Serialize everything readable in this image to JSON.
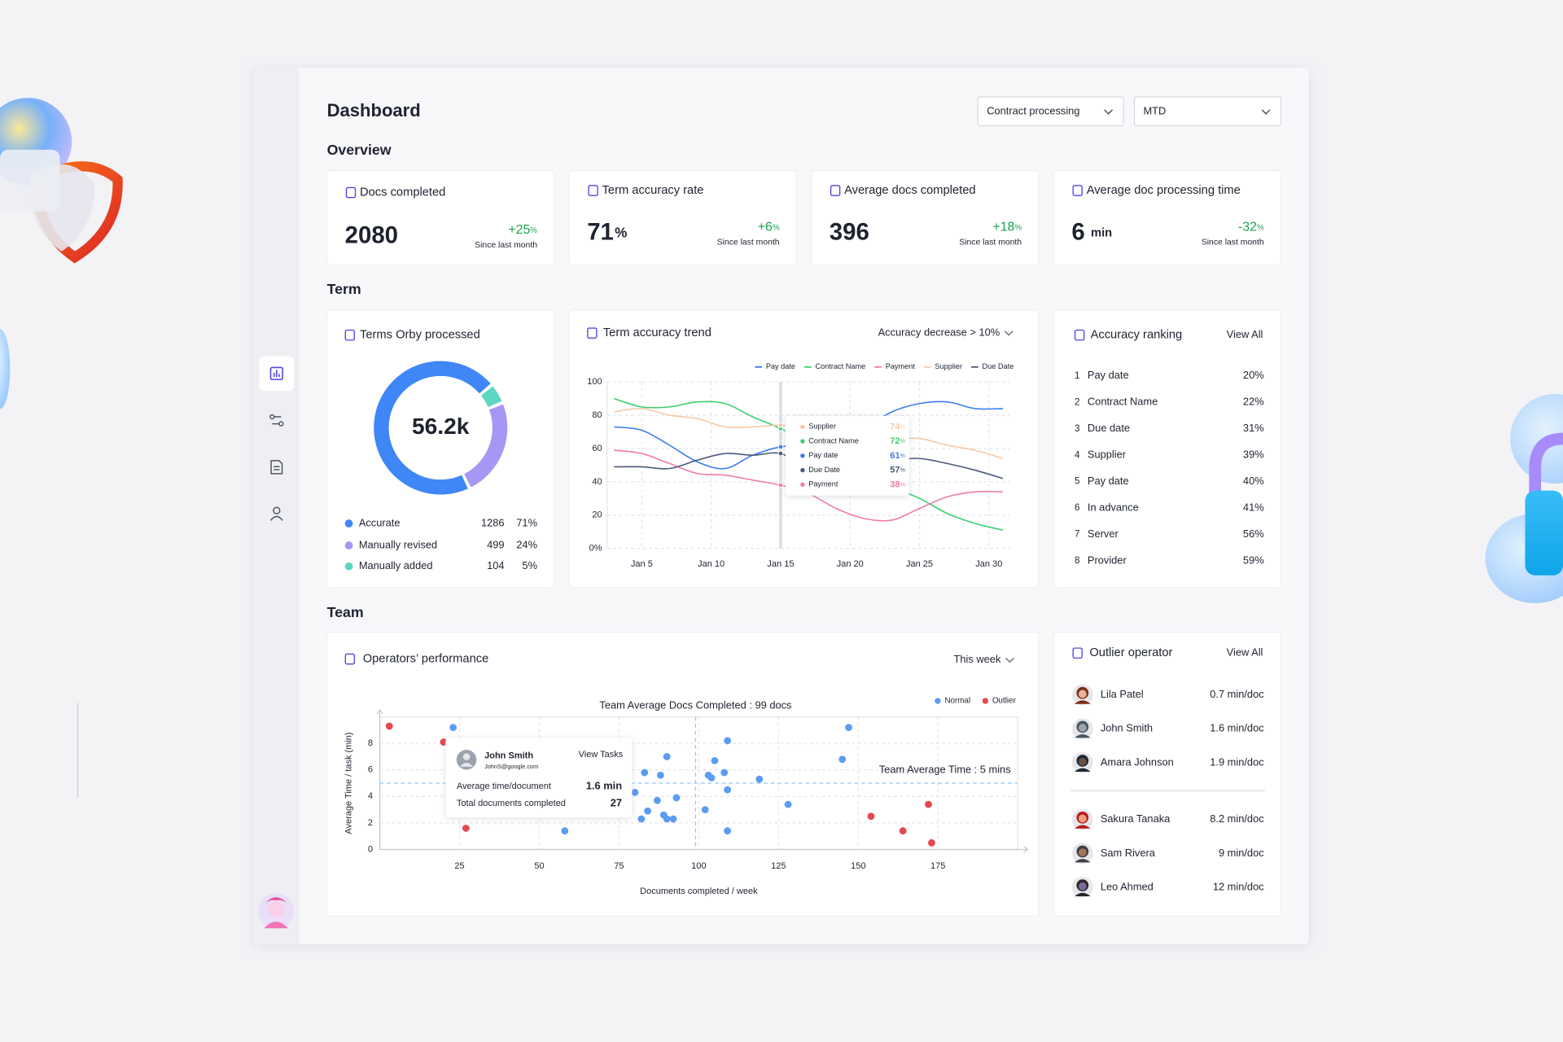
{
  "header": {
    "title": "Dashboard",
    "filters": [
      "Contract processing",
      "MTD"
    ]
  },
  "sections": [
    "Overview",
    "Term",
    "Team"
  ],
  "kpis": [
    {
      "title": "Docs completed",
      "value": "2080",
      "change": "+25",
      "change_unit": "%",
      "note": "Since last month"
    },
    {
      "title": "Term accuracy rate",
      "value": "71",
      "unit": "%",
      "change": "+6",
      "change_unit": "%",
      "note": "Since last month"
    },
    {
      "title": "Average docs completed",
      "value": "396",
      "change": "+18",
      "change_unit": "%",
      "note": "Since last month"
    },
    {
      "title": "Average doc processing time",
      "value": "6",
      "unit": "min",
      "change": "-32",
      "change_unit": "%",
      "note": "Since last month"
    }
  ],
  "chart_data": [
    {
      "type": "pie",
      "title": "Terms Orby processed",
      "total_label": "56.2k",
      "categories": [
        "Accurate",
        "Manually revised",
        "Manually added"
      ],
      "counts": [
        1286,
        499,
        104
      ],
      "values": [
        71,
        24,
        5
      ],
      "value_labels": [
        "71%",
        "24%",
        "5%"
      ],
      "colors": [
        "#3f86f7",
        "#a896f5",
        "#5fd6c4"
      ]
    },
    {
      "type": "line",
      "title": "Term accuracy trend",
      "filter": "Accuracy decrease > 10%",
      "x": [
        3,
        5,
        7,
        9,
        11,
        13,
        15,
        17,
        19,
        21,
        23,
        25,
        27,
        29,
        31
      ],
      "xlim": [
        2.5,
        31.5
      ],
      "xticks": [
        {
          "value": 5,
          "label": "Jan 5"
        },
        {
          "value": 10,
          "label": "Jan 10"
        },
        {
          "value": 15,
          "label": "Jan 15"
        },
        {
          "value": 20,
          "label": "Jan 20"
        },
        {
          "value": 25,
          "label": "Jan 25"
        },
        {
          "value": 30,
          "label": "Jan 30"
        }
      ],
      "ylim": [
        0,
        100
      ],
      "yticks": [
        {
          "value": 0,
          "label": "0%"
        },
        20,
        40,
        60,
        80,
        100
      ],
      "grid": true,
      "legend": "top-right",
      "series": [
        {
          "name": "Pay date",
          "color": "#3b7cf0",
          "values": [
            73,
            71,
            62,
            52,
            48,
            56,
            61,
            62,
            64,
            72,
            82,
            87,
            88,
            84,
            84
          ]
        },
        {
          "name": "Contract Name",
          "color": "#3ccf6e",
          "values": [
            90,
            85,
            85,
            88,
            87,
            79,
            72,
            63,
            53,
            45,
            37,
            30,
            21,
            15,
            11
          ]
        },
        {
          "name": "Payment",
          "color": "#f07aa8",
          "values": [
            59,
            57,
            51,
            45,
            44,
            41,
            38,
            33,
            24,
            18,
            17,
            24,
            31,
            34,
            34
          ]
        },
        {
          "name": "Supplier",
          "color": "#f6c9a6",
          "values": [
            82,
            84,
            80,
            78,
            73,
            73,
            74,
            72,
            70,
            68,
            66,
            66,
            62,
            59,
            54
          ]
        },
        {
          "name": "Due Date",
          "color": "#4b5a78",
          "values": [
            49,
            49,
            48,
            53,
            57,
            56,
            57,
            48,
            48,
            51,
            53,
            54,
            51,
            47,
            42
          ]
        }
      ],
      "tooltip": {
        "x": 15,
        "unit": "%",
        "items": [
          {
            "name": "Supplier",
            "value": 74
          },
          {
            "name": "Contract Name",
            "value": 72
          },
          {
            "name": "Pay date",
            "value": 61
          },
          {
            "name": "Due Date",
            "value": 57
          },
          {
            "name": "Payment",
            "value": 38
          }
        ]
      }
    },
    {
      "type": "scatter",
      "title": "Operators’ performance",
      "filter": "This week",
      "xlabel": "Documents completed / week",
      "ylabel": "Average Time / task (min)",
      "xlim": [
        0,
        200
      ],
      "xticks": [
        25,
        50,
        75,
        100,
        125,
        150,
        175
      ],
      "ylim": [
        0,
        10
      ],
      "yticks": [
        0,
        2,
        4,
        6,
        8
      ],
      "grid": true,
      "legend": "top-right",
      "reference_lines": {
        "x": 99,
        "y": 5
      },
      "annotations": [
        "Team Average Docs Completed : 99 docs",
        "Team Average Time : 5 mins"
      ],
      "series": [
        {
          "name": "Normal",
          "color": "#5b9cf2",
          "x": [
            23,
            58,
            83,
            90,
            88,
            80,
            84,
            82,
            87,
            89,
            90,
            92,
            93,
            102,
            103,
            104,
            105,
            108,
            109,
            109,
            109,
            119,
            128,
            145,
            147
          ],
          "values": [
            9.2,
            1.4,
            5.8,
            7,
            5.6,
            4.3,
            2.9,
            2.3,
            3.7,
            2.6,
            2.3,
            2.3,
            3.9,
            3,
            5.6,
            5.4,
            6.7,
            5.8,
            8.2,
            4.5,
            1.4,
            5.3,
            3.4,
            6.8,
            9.2
          ]
        },
        {
          "name": "Outlier",
          "color": "#e5484d",
          "x": [
            3,
            20,
            27,
            154,
            164,
            172,
            173
          ],
          "values": [
            9.3,
            8.1,
            1.6,
            2.5,
            1.4,
            3.4,
            0.5
          ]
        }
      ],
      "tooltip": {
        "name": "John Smith",
        "email": "JohnS@google.com",
        "action": "View Tasks",
        "rows": [
          {
            "label": "Average time/document",
            "value": "1.6 min"
          },
          {
            "label": "Total documents completed",
            "value": "27"
          }
        ]
      }
    }
  ],
  "ranking": {
    "title": "Accuracy ranking",
    "action": "View All",
    "items": [
      {
        "rank": 1,
        "name": "Pay date",
        "value": "20%"
      },
      {
        "rank": 2,
        "name": "Contract Name",
        "value": "22%"
      },
      {
        "rank": 3,
        "name": "Due date",
        "value": "31%"
      },
      {
        "rank": 4,
        "name": "Supplier",
        "value": "39%"
      },
      {
        "rank": 5,
        "name": "Pay date",
        "value": "40%"
      },
      {
        "rank": 6,
        "name": "In advance",
        "value": "41%"
      },
      {
        "rank": 7,
        "name": "Server",
        "value": "56%"
      },
      {
        "rank": 8,
        "name": "Provider",
        "value": "59%"
      }
    ]
  },
  "outliers": {
    "title": "Outlier operator",
    "action": "View All",
    "groups": [
      [
        {
          "name": "Lila Patel",
          "value": "0.7 min/doc"
        },
        {
          "name": "John Smith",
          "value": "1.6 min/doc"
        },
        {
          "name": "Amara Johnson",
          "value": "1.9 min/doc"
        }
      ],
      [
        {
          "name": "Sakura Tanaka",
          "value": "8.2 min/doc"
        },
        {
          "name": "Sam Rivera",
          "value": "9 min/doc"
        },
        {
          "name": "Leo Ahmed",
          "value": "12 min/doc"
        }
      ]
    ]
  }
}
